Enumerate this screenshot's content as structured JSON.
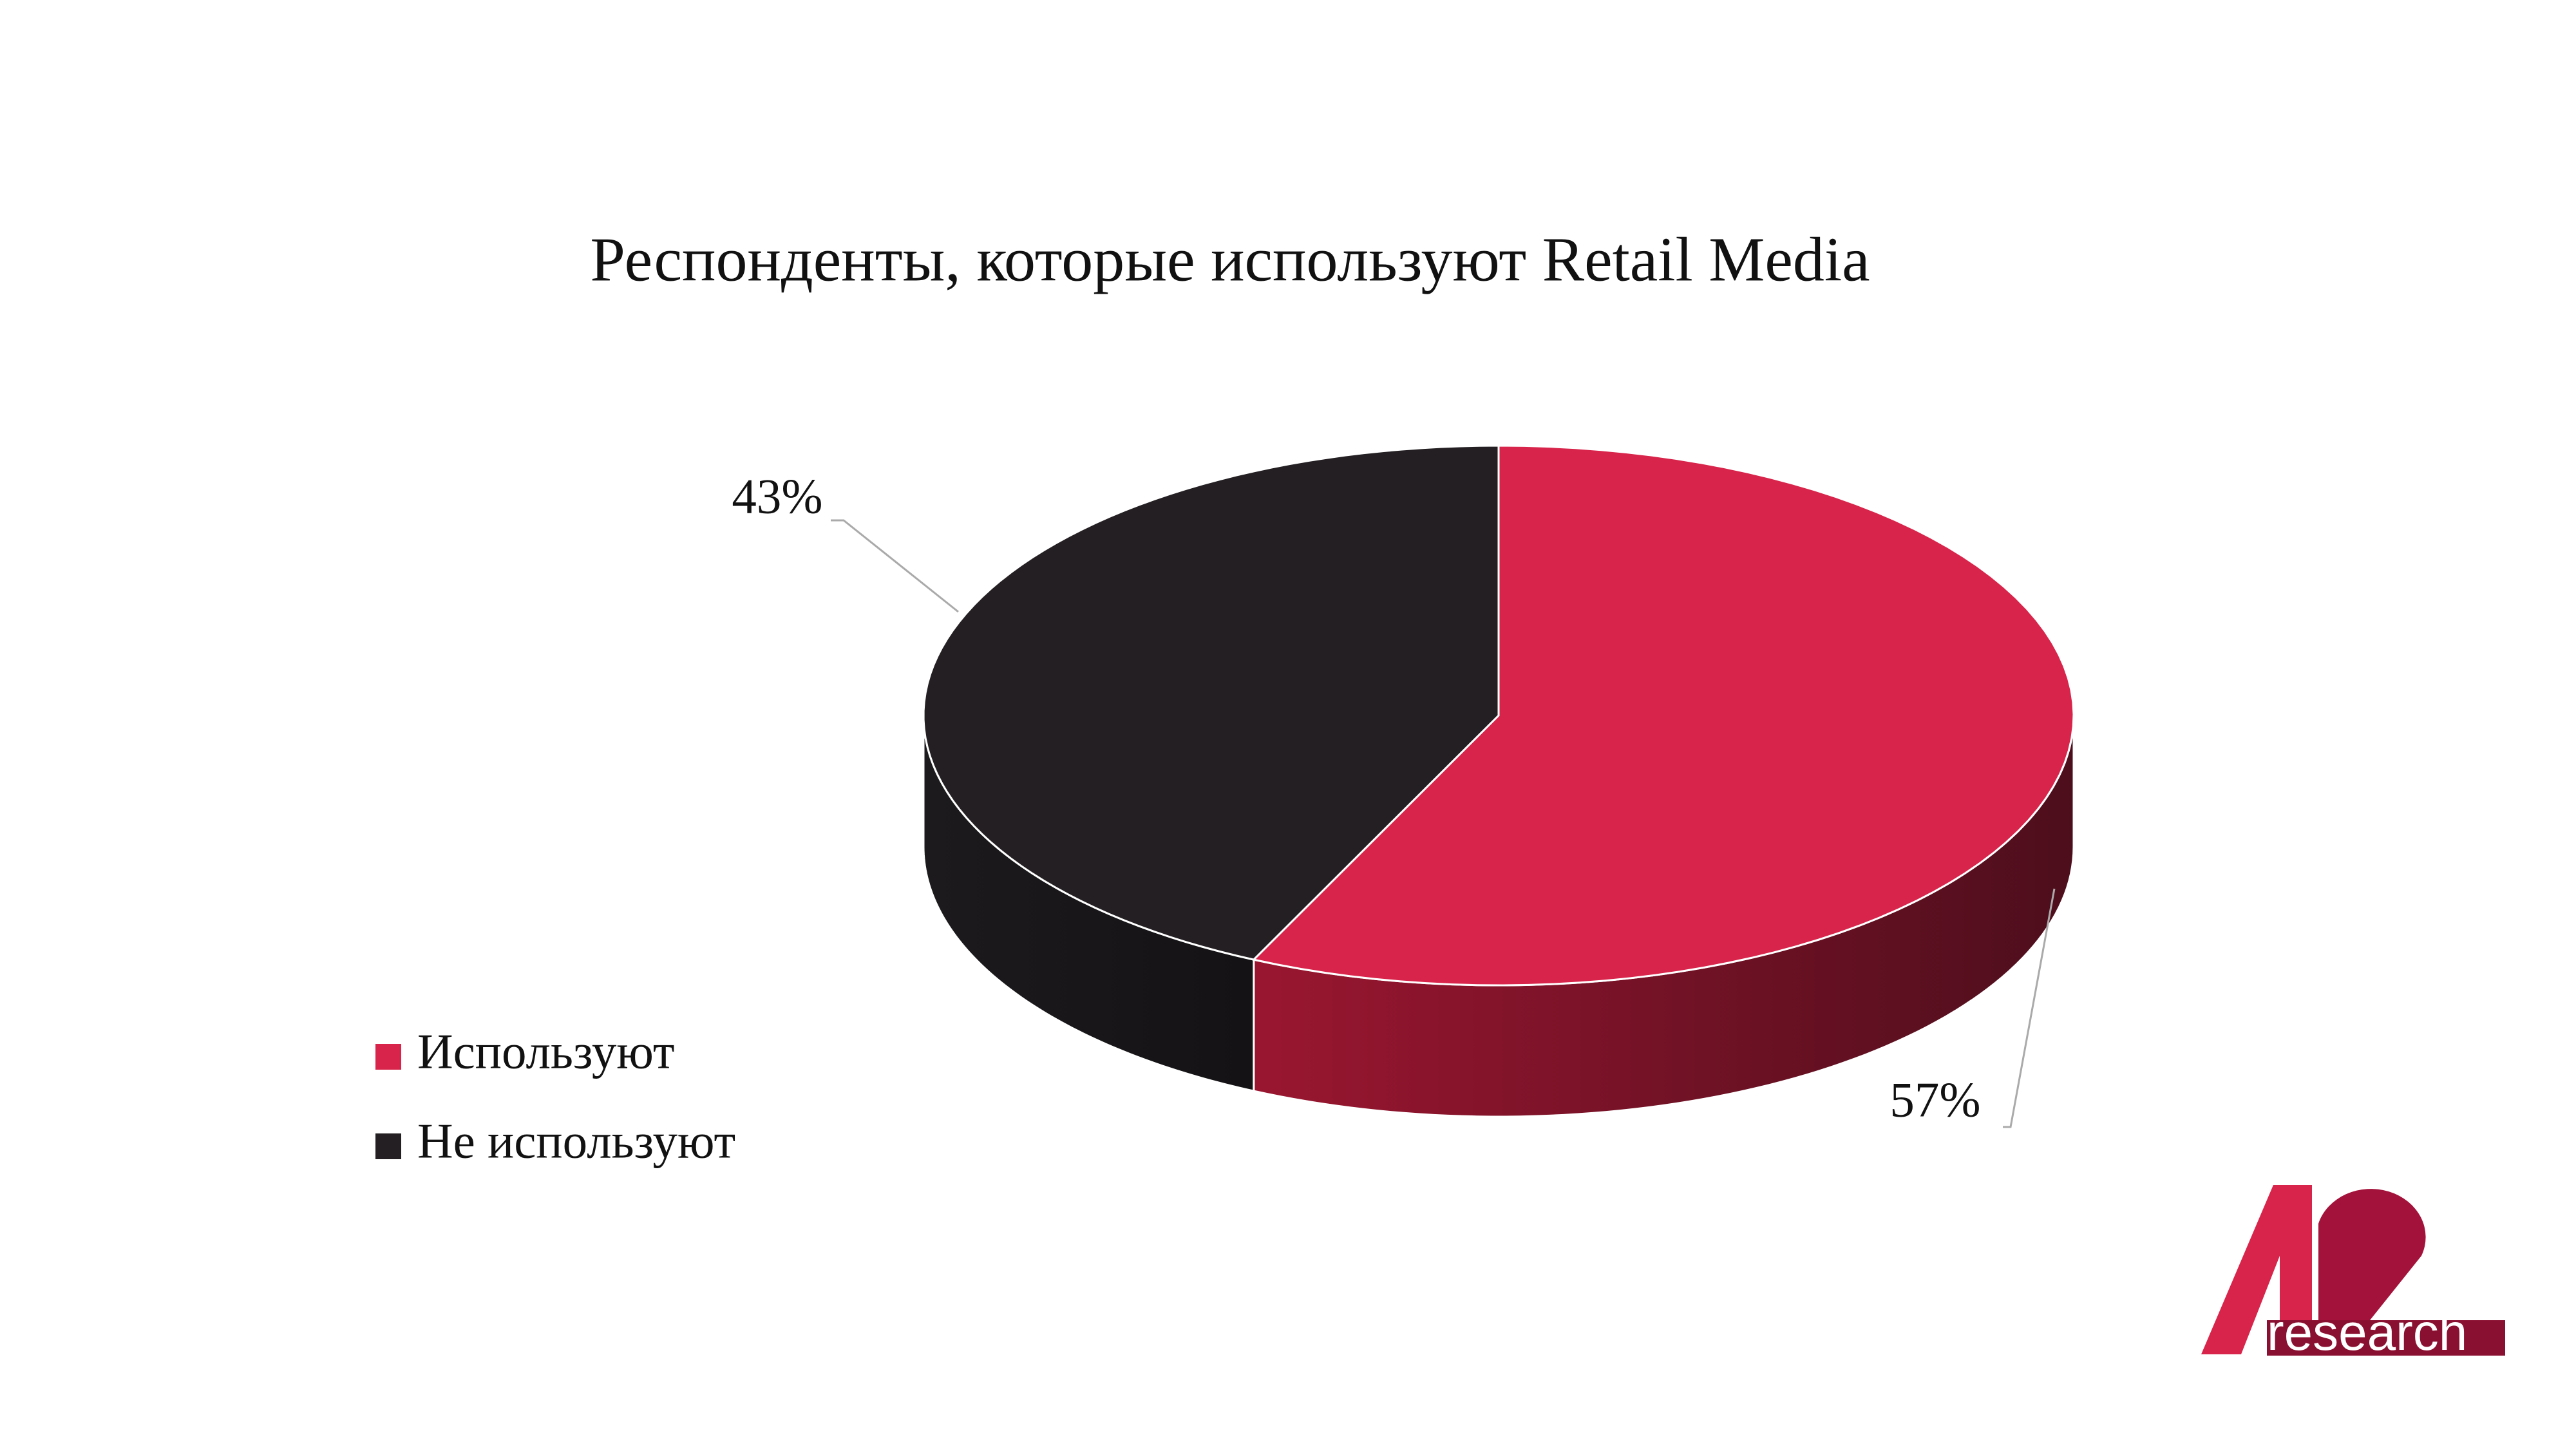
{
  "chart_data": {
    "type": "pie3d",
    "title": "Респонденты, которые используют Retail Media",
    "categories": [
      "Используют",
      "Не используют"
    ],
    "values": [
      57,
      43
    ],
    "value_labels": [
      "57%",
      "43%"
    ],
    "colors": [
      "#d8244a",
      "#231f22"
    ],
    "legend": "left"
  },
  "logo": {
    "text": "research"
  }
}
